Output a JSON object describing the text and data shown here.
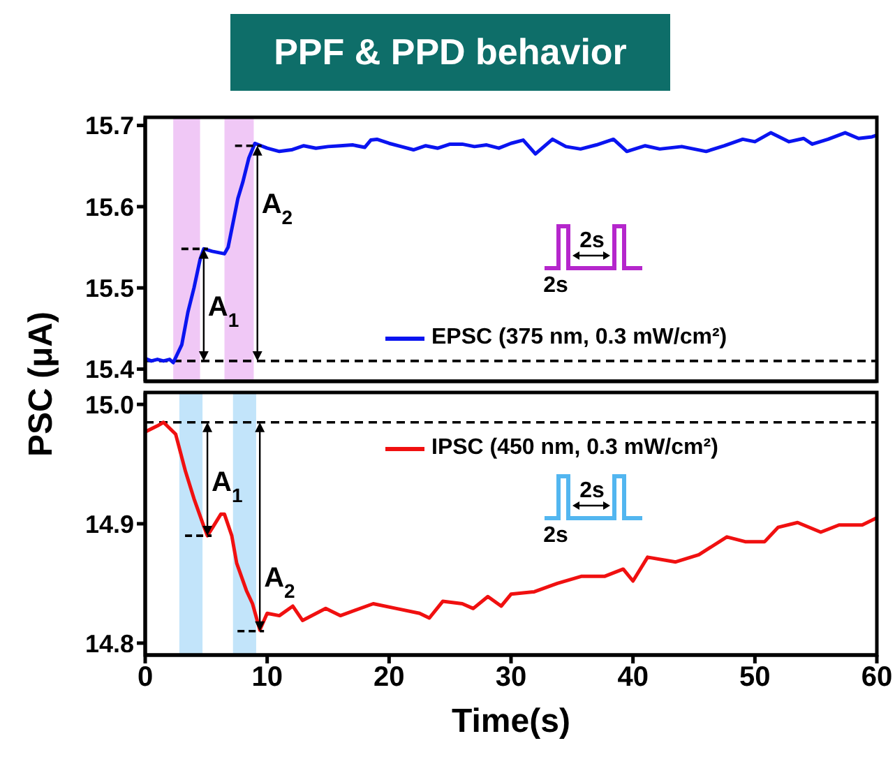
{
  "chart_data": [
    {
      "type": "line",
      "title": "PPF & PPD behavior",
      "ylabel": "PSC (μA)",
      "xlim": [
        0,
        60
      ],
      "xticks": [
        0,
        10,
        20,
        30,
        40,
        50,
        60
      ],
      "ylim": [
        15.385,
        15.71
      ],
      "yticks": [
        15.4,
        15.5,
        15.6,
        15.7
      ],
      "tick_labels": "y",
      "legend": "bottom right",
      "marker": "none",
      "line_style": "solid",
      "x": [
        0,
        0.5,
        1,
        1.5,
        2,
        2.3,
        3,
        3.5,
        4,
        4.5,
        4.8,
        5.5,
        6.5,
        6.8,
        7.2,
        7.6,
        8,
        8.5,
        9,
        9.5,
        10,
        11,
        12,
        13,
        14,
        15,
        16,
        17,
        18,
        18.5,
        19,
        20,
        21,
        22,
        23,
        24,
        25,
        26,
        27,
        28,
        29,
        30,
        31,
        32,
        33.4,
        34.5,
        35.7,
        37,
        38.4,
        39.5,
        41,
        42.2,
        44,
        46,
        47.5,
        49,
        50,
        51.3,
        52.8,
        54,
        54.7,
        56,
        57.4,
        58.5,
        59.6,
        60
      ],
      "series": [
        {
          "name": "EPSC (375 nm, 0.3 mW/cm²)",
          "color": "#0a14f0",
          "values": [
            15.413,
            15.41,
            15.412,
            15.41,
            15.412,
            15.408,
            15.43,
            15.47,
            15.5,
            15.535,
            15.548,
            15.545,
            15.542,
            15.55,
            15.58,
            15.61,
            15.63,
            15.66,
            15.678,
            15.675,
            15.672,
            15.668,
            15.67,
            15.675,
            15.672,
            15.674,
            15.675,
            15.676,
            15.673,
            15.682,
            15.683,
            15.678,
            15.674,
            15.67,
            15.675,
            15.672,
            15.677,
            15.677,
            15.674,
            15.676,
            15.672,
            15.678,
            15.682,
            15.665,
            15.683,
            15.674,
            15.671,
            15.676,
            15.683,
            15.668,
            15.675,
            15.671,
            15.674,
            15.668,
            15.675,
            15.683,
            15.68,
            15.691,
            15.68,
            15.684,
            15.677,
            15.683,
            15.691,
            15.684,
            15.686,
            15.688
          ]
        }
      ],
      "ref_lines": [
        {
          "axis": "y",
          "value": 15.41,
          "color": "#000000",
          "line_style": "dashed"
        }
      ],
      "bands": [
        {
          "axis": "x",
          "from": 2.3,
          "to": 4.5,
          "color": "#eab0f2"
        },
        {
          "axis": "x",
          "from": 6.5,
          "to": 8.9,
          "color": "#eab0f2"
        }
      ],
      "annotations": [
        {
          "text": "A$_{1}$",
          "x": 4.8,
          "y": 15.548
        },
        {
          "text": "A$_{2}$",
          "x": 9.2,
          "y": 15.675
        },
        "2s",
        "2s"
      ]
    },
    {
      "type": "line",
      "xlabel": "Time(s)",
      "xlim": [
        0,
        60
      ],
      "xticks": [
        0,
        10,
        20,
        30,
        40,
        50,
        60
      ],
      "ylim": [
        14.79,
        15.01
      ],
      "yticks": [
        14.8,
        14.9,
        {
          "value": 15,
          "label": "15.0"
        }
      ],
      "legend": "top right",
      "marker": "none",
      "line_style": "solid",
      "x": [
        0,
        1,
        1.5,
        2.5,
        3.3,
        4,
        4.8,
        5.1,
        5.6,
        6.2,
        6.5,
        7.1,
        7.5,
        8.3,
        8.8,
        9.4,
        10,
        11,
        12.1,
        12.9,
        14.8,
        16,
        18.7,
        20.6,
        22.5,
        23.3,
        24.4,
        26,
        26.9,
        28.1,
        29.2,
        30,
        31.9,
        33.8,
        35.8,
        37.7,
        39.2,
        40,
        41.2,
        43.5,
        45.4,
        47.7,
        49.2,
        50.8,
        51.9,
        53.5,
        55.4,
        56.9,
        58.8,
        60
      ],
      "series": [
        {
          "name": "IPSC (450 nm, 0.3 mW/cm²)",
          "color": "#f01010",
          "values": [
            14.977,
            14.982,
            14.985,
            14.975,
            14.944,
            14.921,
            14.898,
            14.89,
            14.898,
            14.908,
            14.908,
            14.89,
            14.867,
            14.844,
            14.833,
            14.811,
            14.825,
            14.823,
            14.831,
            14.819,
            14.829,
            14.823,
            14.833,
            14.829,
            14.825,
            14.821,
            14.835,
            14.833,
            14.829,
            14.839,
            14.831,
            14.841,
            14.843,
            14.85,
            14.856,
            14.856,
            14.862,
            14.852,
            14.872,
            14.868,
            14.874,
            14.889,
            14.885,
            14.885,
            14.897,
            14.901,
            14.893,
            14.899,
            14.899,
            14.905
          ]
        }
      ],
      "ref_lines": [
        {
          "axis": "y",
          "value": 14.985,
          "color": "#000000",
          "line_style": "dashed"
        }
      ],
      "bands": [
        {
          "axis": "x",
          "from": 2.8,
          "to": 4.7,
          "color": "#a8d8f8"
        },
        {
          "axis": "x",
          "from": 7.2,
          "to": 9.1,
          "color": "#a8d8f8"
        }
      ],
      "annotations": [
        {
          "text": "A$_{1}$",
          "x": 5.1,
          "y": 14.89
        },
        {
          "text": "A$_{2}$",
          "x": 9.4,
          "y": 14.81
        },
        "2s",
        "2s"
      ]
    }
  ]
}
